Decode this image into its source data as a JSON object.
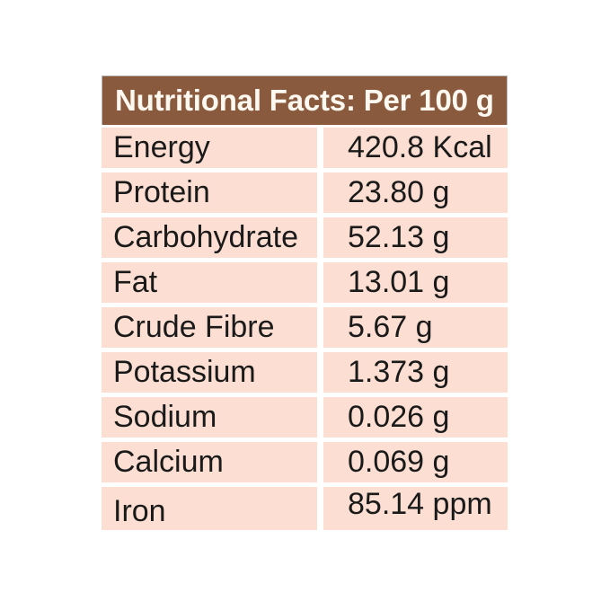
{
  "table": {
    "title": "Nutritional Facts: Per 100 g",
    "rows": [
      {
        "label": "Energy",
        "value": "420.8 Kcal"
      },
      {
        "label": "Protein",
        "value": "23.80 g"
      },
      {
        "label": "Carbohydrate",
        "value": "52.13 g"
      },
      {
        "label": "Fat",
        "value": "13.01 g"
      },
      {
        "label": "Crude Fibre",
        "value": "5.67 g"
      },
      {
        "label": "Potassium",
        "value": "1.373 g"
      },
      {
        "label": "Sodium",
        "value": "0.026 g"
      },
      {
        "label": "Calcium",
        "value": "0.069 g"
      },
      {
        "label": "Iron",
        "value": "85.14 ppm"
      }
    ],
    "colors": {
      "header_bg": "#8a5a3e",
      "header_text": "#fdf8f0",
      "row_bg": "#fcdfd2",
      "text": "#1a1a1a",
      "border": "#b9b9b9"
    }
  }
}
